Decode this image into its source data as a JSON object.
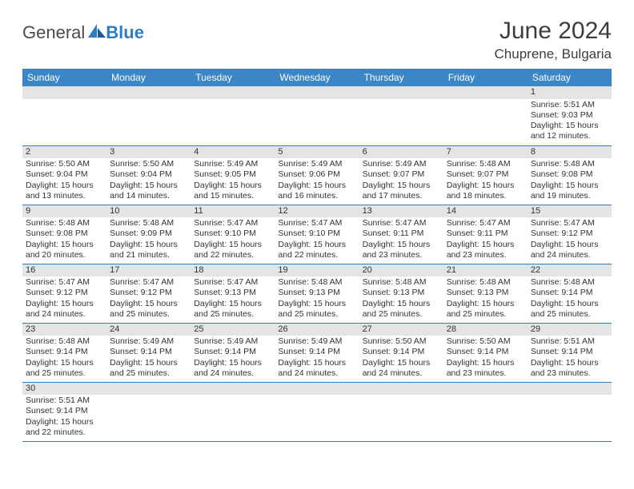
{
  "brand": {
    "part1": "General",
    "part2": "Blue"
  },
  "colors": {
    "header_bg": "#3d86c6",
    "header_text": "#ffffff",
    "row_divider": "#2f7cc4",
    "daynum_bg": "#e4e4e4",
    "text": "#333333",
    "page_bg": "#ffffff"
  },
  "title": "June 2024",
  "location": "Chuprene, Bulgaria",
  "weekdays": [
    "Sunday",
    "Monday",
    "Tuesday",
    "Wednesday",
    "Thursday",
    "Friday",
    "Saturday"
  ],
  "weeks": [
    [
      null,
      null,
      null,
      null,
      null,
      null,
      {
        "n": "1",
        "sunrise": "Sunrise: 5:51 AM",
        "sunset": "Sunset: 9:03 PM",
        "day1": "Daylight: 15 hours",
        "day2": "and 12 minutes."
      }
    ],
    [
      {
        "n": "2",
        "sunrise": "Sunrise: 5:50 AM",
        "sunset": "Sunset: 9:04 PM",
        "day1": "Daylight: 15 hours",
        "day2": "and 13 minutes."
      },
      {
        "n": "3",
        "sunrise": "Sunrise: 5:50 AM",
        "sunset": "Sunset: 9:04 PM",
        "day1": "Daylight: 15 hours",
        "day2": "and 14 minutes."
      },
      {
        "n": "4",
        "sunrise": "Sunrise: 5:49 AM",
        "sunset": "Sunset: 9:05 PM",
        "day1": "Daylight: 15 hours",
        "day2": "and 15 minutes."
      },
      {
        "n": "5",
        "sunrise": "Sunrise: 5:49 AM",
        "sunset": "Sunset: 9:06 PM",
        "day1": "Daylight: 15 hours",
        "day2": "and 16 minutes."
      },
      {
        "n": "6",
        "sunrise": "Sunrise: 5:49 AM",
        "sunset": "Sunset: 9:07 PM",
        "day1": "Daylight: 15 hours",
        "day2": "and 17 minutes."
      },
      {
        "n": "7",
        "sunrise": "Sunrise: 5:48 AM",
        "sunset": "Sunset: 9:07 PM",
        "day1": "Daylight: 15 hours",
        "day2": "and 18 minutes."
      },
      {
        "n": "8",
        "sunrise": "Sunrise: 5:48 AM",
        "sunset": "Sunset: 9:08 PM",
        "day1": "Daylight: 15 hours",
        "day2": "and 19 minutes."
      }
    ],
    [
      {
        "n": "9",
        "sunrise": "Sunrise: 5:48 AM",
        "sunset": "Sunset: 9:08 PM",
        "day1": "Daylight: 15 hours",
        "day2": "and 20 minutes."
      },
      {
        "n": "10",
        "sunrise": "Sunrise: 5:48 AM",
        "sunset": "Sunset: 9:09 PM",
        "day1": "Daylight: 15 hours",
        "day2": "and 21 minutes."
      },
      {
        "n": "11",
        "sunrise": "Sunrise: 5:47 AM",
        "sunset": "Sunset: 9:10 PM",
        "day1": "Daylight: 15 hours",
        "day2": "and 22 minutes."
      },
      {
        "n": "12",
        "sunrise": "Sunrise: 5:47 AM",
        "sunset": "Sunset: 9:10 PM",
        "day1": "Daylight: 15 hours",
        "day2": "and 22 minutes."
      },
      {
        "n": "13",
        "sunrise": "Sunrise: 5:47 AM",
        "sunset": "Sunset: 9:11 PM",
        "day1": "Daylight: 15 hours",
        "day2": "and 23 minutes."
      },
      {
        "n": "14",
        "sunrise": "Sunrise: 5:47 AM",
        "sunset": "Sunset: 9:11 PM",
        "day1": "Daylight: 15 hours",
        "day2": "and 23 minutes."
      },
      {
        "n": "15",
        "sunrise": "Sunrise: 5:47 AM",
        "sunset": "Sunset: 9:12 PM",
        "day1": "Daylight: 15 hours",
        "day2": "and 24 minutes."
      }
    ],
    [
      {
        "n": "16",
        "sunrise": "Sunrise: 5:47 AM",
        "sunset": "Sunset: 9:12 PM",
        "day1": "Daylight: 15 hours",
        "day2": "and 24 minutes."
      },
      {
        "n": "17",
        "sunrise": "Sunrise: 5:47 AM",
        "sunset": "Sunset: 9:12 PM",
        "day1": "Daylight: 15 hours",
        "day2": "and 25 minutes."
      },
      {
        "n": "18",
        "sunrise": "Sunrise: 5:47 AM",
        "sunset": "Sunset: 9:13 PM",
        "day1": "Daylight: 15 hours",
        "day2": "and 25 minutes."
      },
      {
        "n": "19",
        "sunrise": "Sunrise: 5:48 AM",
        "sunset": "Sunset: 9:13 PM",
        "day1": "Daylight: 15 hours",
        "day2": "and 25 minutes."
      },
      {
        "n": "20",
        "sunrise": "Sunrise: 5:48 AM",
        "sunset": "Sunset: 9:13 PM",
        "day1": "Daylight: 15 hours",
        "day2": "and 25 minutes."
      },
      {
        "n": "21",
        "sunrise": "Sunrise: 5:48 AM",
        "sunset": "Sunset: 9:13 PM",
        "day1": "Daylight: 15 hours",
        "day2": "and 25 minutes."
      },
      {
        "n": "22",
        "sunrise": "Sunrise: 5:48 AM",
        "sunset": "Sunset: 9:14 PM",
        "day1": "Daylight: 15 hours",
        "day2": "and 25 minutes."
      }
    ],
    [
      {
        "n": "23",
        "sunrise": "Sunrise: 5:48 AM",
        "sunset": "Sunset: 9:14 PM",
        "day1": "Daylight: 15 hours",
        "day2": "and 25 minutes."
      },
      {
        "n": "24",
        "sunrise": "Sunrise: 5:49 AM",
        "sunset": "Sunset: 9:14 PM",
        "day1": "Daylight: 15 hours",
        "day2": "and 25 minutes."
      },
      {
        "n": "25",
        "sunrise": "Sunrise: 5:49 AM",
        "sunset": "Sunset: 9:14 PM",
        "day1": "Daylight: 15 hours",
        "day2": "and 24 minutes."
      },
      {
        "n": "26",
        "sunrise": "Sunrise: 5:49 AM",
        "sunset": "Sunset: 9:14 PM",
        "day1": "Daylight: 15 hours",
        "day2": "and 24 minutes."
      },
      {
        "n": "27",
        "sunrise": "Sunrise: 5:50 AM",
        "sunset": "Sunset: 9:14 PM",
        "day1": "Daylight: 15 hours",
        "day2": "and 24 minutes."
      },
      {
        "n": "28",
        "sunrise": "Sunrise: 5:50 AM",
        "sunset": "Sunset: 9:14 PM",
        "day1": "Daylight: 15 hours",
        "day2": "and 23 minutes."
      },
      {
        "n": "29",
        "sunrise": "Sunrise: 5:51 AM",
        "sunset": "Sunset: 9:14 PM",
        "day1": "Daylight: 15 hours",
        "day2": "and 23 minutes."
      }
    ],
    [
      {
        "n": "30",
        "sunrise": "Sunrise: 5:51 AM",
        "sunset": "Sunset: 9:14 PM",
        "day1": "Daylight: 15 hours",
        "day2": "and 22 minutes."
      },
      null,
      null,
      null,
      null,
      null,
      null
    ]
  ]
}
